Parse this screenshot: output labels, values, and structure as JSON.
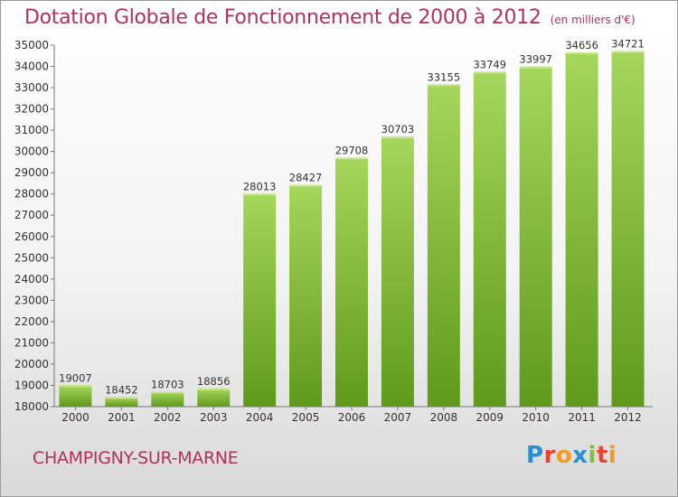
{
  "title": "Dotation Globale de Fonctionnement de 2000 à 2012",
  "unit_label": "(en milliers d'€)",
  "commune": "CHAMPIGNY-SUR-MARNE",
  "logo": {
    "letters": [
      "P",
      "r",
      "o",
      "x",
      "i",
      "t",
      "i"
    ],
    "colors": [
      "#2a8fd0",
      "#e8432f",
      "#f39a1f",
      "#2a8fd0",
      "#7fbf3f",
      "#e8432f",
      "#f39a1f"
    ]
  },
  "colors": {
    "bar_top": "#a6d65c",
    "bar_bottom": "#5f9a1c",
    "text": "#333333",
    "accent": "#b0325a"
  },
  "chart_data": {
    "type": "bar",
    "categories": [
      "2000",
      "2001",
      "2002",
      "2003",
      "2004",
      "2005",
      "2006",
      "2007",
      "2008",
      "2009",
      "2010",
      "2011",
      "2012"
    ],
    "values": [
      19007,
      18452,
      18703,
      18856,
      28013,
      28427,
      29708,
      30703,
      33155,
      33749,
      33997,
      34656,
      34721
    ],
    "title": "Dotation Globale de Fonctionnement de 2000 à 2012",
    "ylim": [
      18000,
      35000
    ],
    "yticks": [
      18000,
      19000,
      20000,
      21000,
      22000,
      23000,
      24000,
      25000,
      26000,
      27000,
      28000,
      29000,
      30000,
      31000,
      32000,
      33000,
      34000,
      35000
    ],
    "grid": false,
    "legend": "none"
  }
}
